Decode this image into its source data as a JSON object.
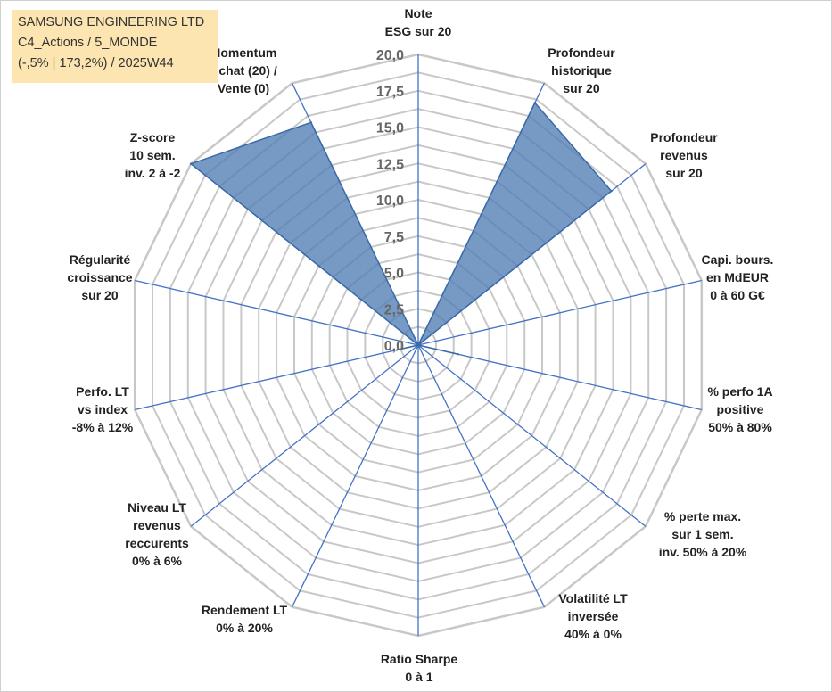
{
  "title_box": {
    "line1": "SAMSUNG ENGINEERING LTD",
    "line2": "C4_Actions / 5_MONDE",
    "line3": "(-,5% | 173,2%) / 2025W44"
  },
  "chart_data": {
    "type": "radar",
    "r_range": [
      0,
      20
    ],
    "r_ticks": [
      "0,0",
      "2,5",
      "5,0",
      "7,5",
      "10,0",
      "12,5",
      "15,0",
      "17,5",
      "20,0"
    ],
    "axes": [
      [
        "Note",
        "ESG sur 20"
      ],
      [
        "Profondeur",
        "historique",
        "sur 20"
      ],
      [
        "Profondeur",
        "revenus",
        "sur 20"
      ],
      [
        "Capi. bours.",
        "en MdEUR",
        "0 à 60 G€"
      ],
      [
        "% perfo 1A",
        "positive",
        "50% à 80%"
      ],
      [
        "% perte max.",
        "sur 1 sem.",
        "inv. 50% à 20%"
      ],
      [
        "Volatilité LT",
        "inversée",
        "40% à 0%"
      ],
      [
        "Ratio Sharpe",
        "0 à 1"
      ],
      [
        "Rendement LT",
        "0% à 20%"
      ],
      [
        "Niveau LT",
        "revenus",
        "reccurents",
        "0% à 6%"
      ],
      [
        "Perfo. LT",
        "vs index",
        "-8% à 12%"
      ],
      [
        "Régularité",
        "croissance",
        "sur 20"
      ],
      [
        "Z-score",
        "10 sem.",
        "inv. 2 à -2"
      ],
      [
        "Momentum",
        "Achat (20) /",
        "Vente (0)"
      ]
    ],
    "series": [
      {
        "values": [
          0,
          18.5,
          17.0,
          0,
          2.8,
          0,
          0,
          0,
          0,
          0,
          1.5,
          0,
          20.0,
          17.0
        ],
        "color": "#4f7db2"
      }
    ],
    "grid": true,
    "legend": "none",
    "colors": {
      "grid": "#c8c8c8",
      "spokes": "#4472c4",
      "fill": "#4f7db2"
    }
  }
}
